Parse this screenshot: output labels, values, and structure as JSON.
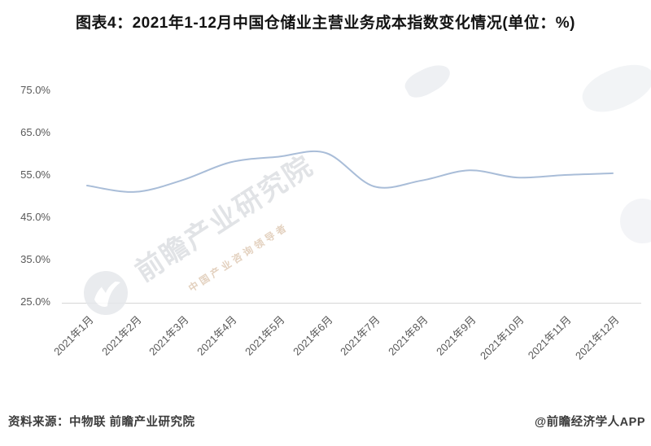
{
  "title": "图表4：2021年1-12月中国仓储业主营业务成本指数变化情况(单位：%)",
  "watermark": {
    "main": "前瞻产业研究院",
    "sub": "中国产业咨询领导者"
  },
  "footer": {
    "source": "资料来源：中物联 前瞻产业研究院",
    "credit": "@前瞻经济学人APP"
  },
  "colors": {
    "line": "#a9bdd8",
    "axis_line": "#d6d6d6",
    "tick_label": "#595959",
    "title_text": "#131313"
  },
  "chart_data": {
    "type": "line",
    "title": "图表4：2021年1-12月中国仓储业主营业务成本指数变化情况(单位：%)",
    "categories": [
      "2021年1月",
      "2021年2月",
      "2021年3月",
      "2021年4月",
      "2021年5月",
      "2021年6月",
      "2021年7月",
      "2021年8月",
      "2021年9月",
      "2021年10月",
      "2021年11月",
      "2021年12月"
    ],
    "values": [
      52.5,
      51.0,
      53.8,
      58.0,
      59.3,
      60.2,
      52.3,
      53.7,
      56.1,
      54.4,
      55.0,
      55.4
    ],
    "ytick_labels": [
      "75.0%",
      "65.0%",
      "55.0%",
      "45.0%",
      "35.0%",
      "25.0%"
    ],
    "yticks": [
      75.0,
      65.0,
      55.0,
      45.0,
      35.0,
      25.0
    ],
    "ylim": [
      25.0,
      78.0
    ],
    "xlabel": "",
    "ylabel": "",
    "grid": false,
    "legend_position": "none"
  }
}
